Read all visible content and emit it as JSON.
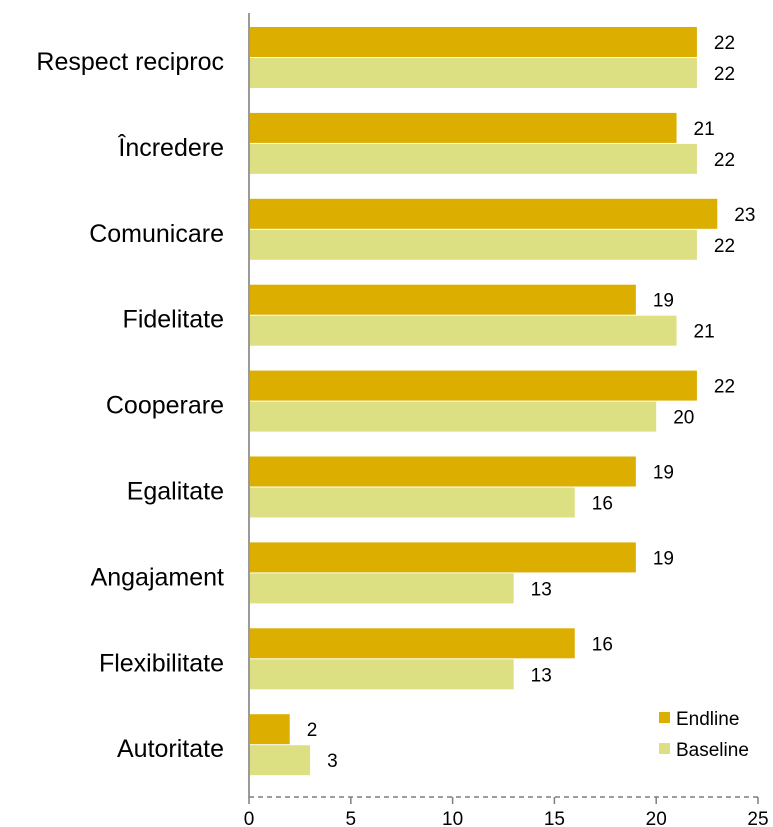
{
  "chart_data": {
    "type": "bar",
    "orientation": "horizontal",
    "categories": [
      "Respect reciproc",
      "Încredere",
      "Comunicare",
      "Fidelitate",
      "Cooperare",
      "Egalitate",
      "Angajament",
      "Flexibilitate",
      "Autoritate"
    ],
    "series": [
      {
        "name": "Endline",
        "color": "#DBAE00",
        "values": [
          22,
          21,
          23,
          19,
          22,
          19,
          19,
          16,
          2
        ]
      },
      {
        "name": "Baseline",
        "color": "#DCE083",
        "values": [
          22,
          22,
          22,
          21,
          20,
          16,
          13,
          13,
          3
        ]
      }
    ],
    "xlim": [
      0,
      25
    ],
    "xticks": [
      0,
      5,
      10,
      15,
      20,
      25
    ],
    "grid": false,
    "legend_position": "bottom-right",
    "title": "",
    "xlabel": "",
    "ylabel": ""
  }
}
